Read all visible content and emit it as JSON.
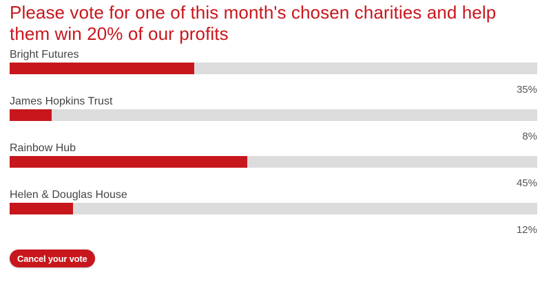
{
  "poll": {
    "title": "Please vote for one of this month's chosen charities and help them win 20% of our profits",
    "options": [
      {
        "label": "Bright Futures",
        "percent_label": "35%",
        "fraction": 0.35
      },
      {
        "label": "James Hopkins Trust",
        "percent_label": "8%",
        "fraction": 0.08
      },
      {
        "label": "Rainbow Hub",
        "percent_label": "45%",
        "fraction": 0.45
      },
      {
        "label": "Helen & Douglas House",
        "percent_label": "12%",
        "fraction": 0.12
      }
    ],
    "cancel_label": "Cancel your vote"
  },
  "colors": {
    "accent": "#c8161d",
    "bar_track": "#dcdcdc",
    "label_text": "#444444"
  }
}
